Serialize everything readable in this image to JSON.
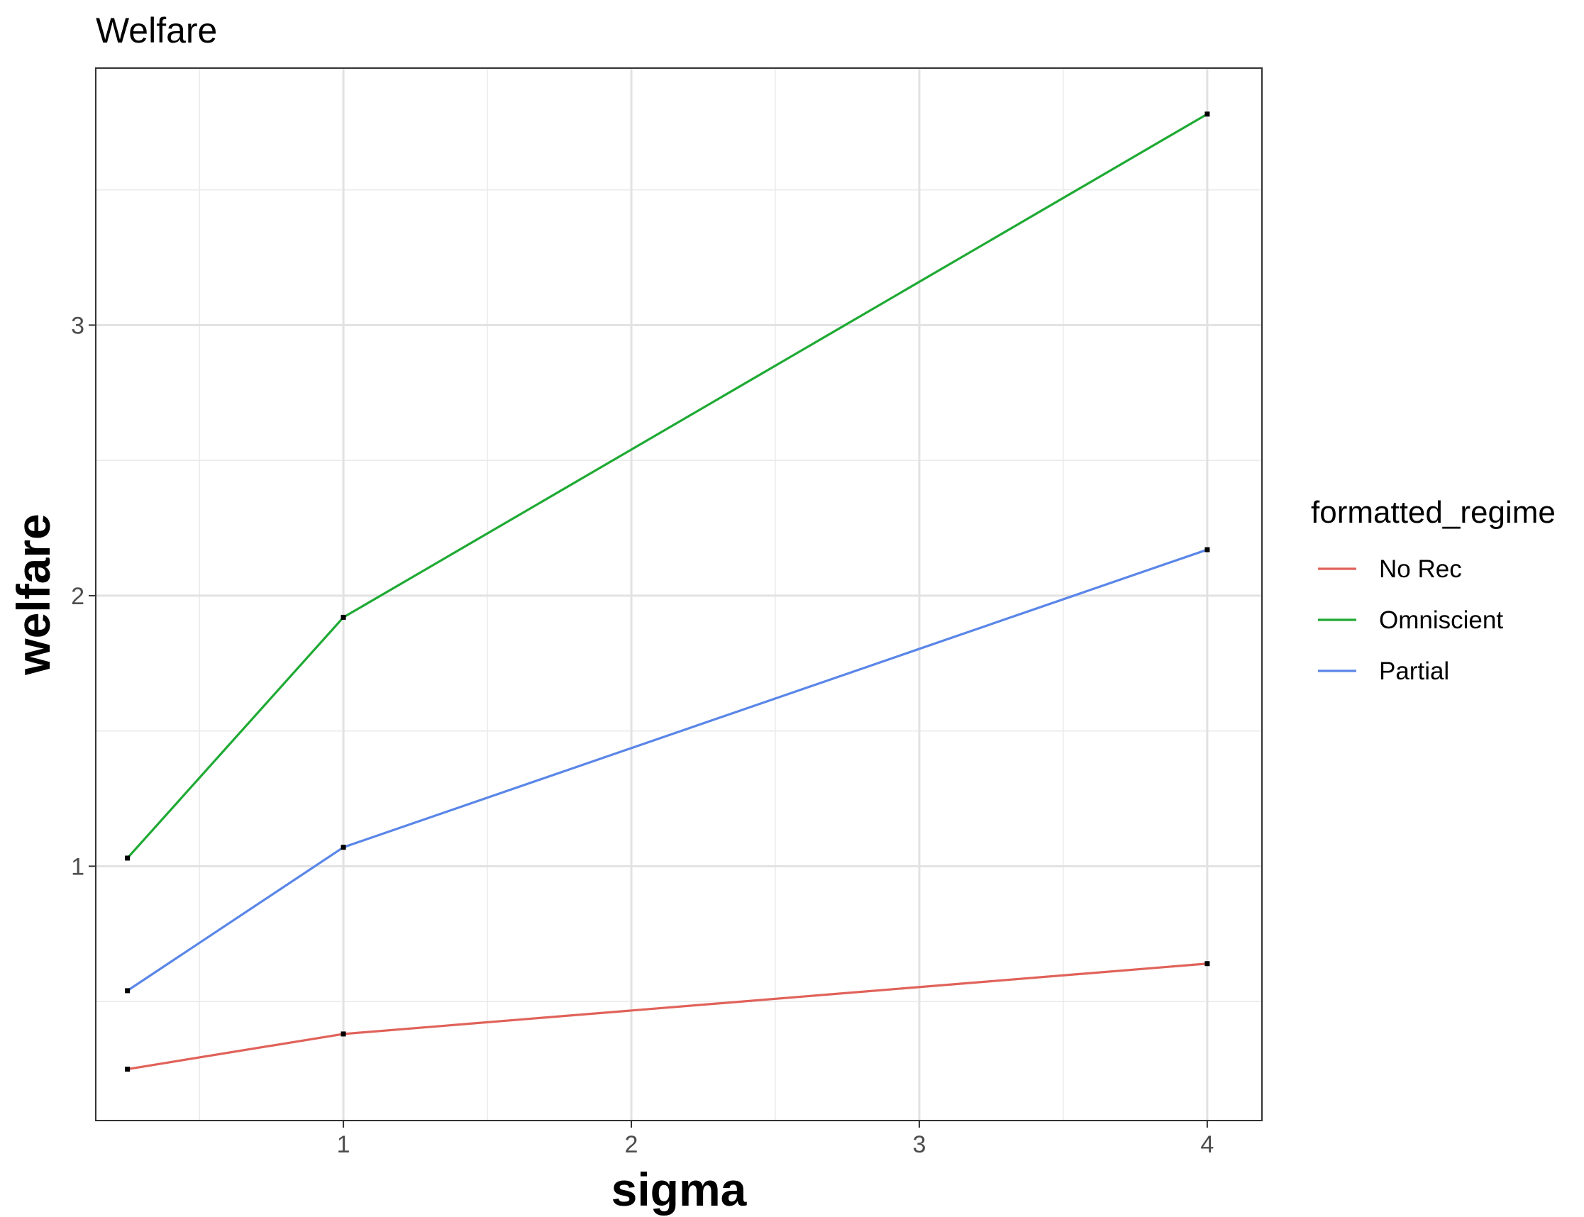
{
  "chart_data": {
    "type": "line",
    "title": "Welfare",
    "xlabel": "sigma",
    "ylabel": "welfare",
    "xlim": [
      0.14,
      4.19
    ],
    "ylim": [
      0.06,
      3.95
    ],
    "x_ticks": [
      1,
      2,
      3,
      4
    ],
    "x_tick_labels": [
      "1",
      "2",
      "3",
      "4"
    ],
    "y_ticks": [
      1,
      2,
      3
    ],
    "y_tick_labels": [
      "1",
      "2",
      "3"
    ],
    "x_minor_gridlines": [
      0.5,
      1.5,
      2.5,
      3.5
    ],
    "y_minor_gridlines": [
      0.5,
      1.5,
      2.5,
      3.5
    ],
    "grid": true,
    "legend_title": "formatted_regime",
    "legend_position": "right",
    "x": [
      0.25,
      1,
      4
    ],
    "series": [
      {
        "name": "No Rec",
        "color": "#e0625a",
        "values": [
          0.25,
          0.38,
          0.64
        ]
      },
      {
        "name": "Omniscient",
        "color": "#1faa34",
        "values": [
          1.03,
          1.92,
          3.78
        ]
      },
      {
        "name": "Partial",
        "color": "#5a86e8",
        "values": [
          0.54,
          1.07,
          2.17
        ]
      }
    ]
  }
}
